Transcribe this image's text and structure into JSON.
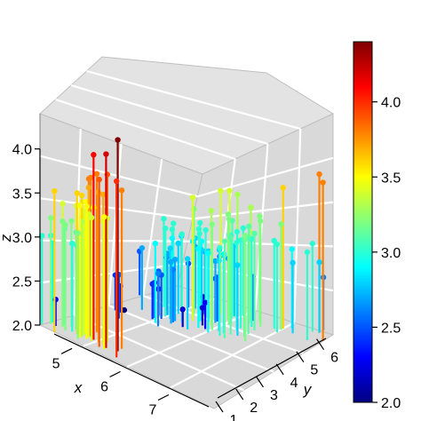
{
  "chart_data": {
    "type": "scatter3d",
    "subtype": "lollipop",
    "x_axis": {
      "label": "x",
      "ticks": [
        "5",
        "6",
        "7"
      ],
      "range": [
        4.3,
        7.9
      ]
    },
    "y_axis": {
      "label": "y",
      "ticks": [
        "1",
        "2",
        "3",
        "4",
        "5",
        "6"
      ],
      "range": [
        1.0,
        6.9
      ]
    },
    "z_axis": {
      "label": "z",
      "ticks": [
        "2.0",
        "2.5",
        "3.0",
        "3.5",
        "4.0"
      ],
      "range": [
        2.0,
        4.4
      ]
    },
    "colorbar": {
      "ticks": [
        "2.0",
        "2.5",
        "3.0",
        "3.5",
        "4.0"
      ],
      "range": [
        2.0,
        4.4
      ],
      "colors": [
        "#00007F",
        "#0000FF",
        "#007FFF",
        "#00FFFF",
        "#7FFF7F",
        "#FFFF00",
        "#FF7F00",
        "#FF0000",
        "#7F0000"
      ]
    },
    "panel_color": "#d9d9d9",
    "grid": true,
    "points": [
      {
        "x": 5.1,
        "y": 1.4,
        "z": 3.5
      },
      {
        "x": 4.9,
        "y": 1.4,
        "z": 3.0
      },
      {
        "x": 4.7,
        "y": 1.3,
        "z": 3.2
      },
      {
        "x": 4.6,
        "y": 1.5,
        "z": 3.1
      },
      {
        "x": 5.0,
        "y": 1.4,
        "z": 3.6
      },
      {
        "x": 5.4,
        "y": 1.7,
        "z": 3.9
      },
      {
        "x": 4.6,
        "y": 1.4,
        "z": 3.4
      },
      {
        "x": 5.0,
        "y": 1.5,
        "z": 3.4
      },
      {
        "x": 4.4,
        "y": 1.4,
        "z": 2.9
      },
      {
        "x": 4.9,
        "y": 1.5,
        "z": 3.1
      },
      {
        "x": 5.4,
        "y": 1.5,
        "z": 3.7
      },
      {
        "x": 4.8,
        "y": 1.6,
        "z": 3.4
      },
      {
        "x": 4.8,
        "y": 1.4,
        "z": 3.0
      },
      {
        "x": 4.3,
        "y": 1.1,
        "z": 3.0
      },
      {
        "x": 5.8,
        "y": 1.2,
        "z": 4.0
      },
      {
        "x": 5.7,
        "y": 1.5,
        "z": 4.4
      },
      {
        "x": 5.4,
        "y": 1.3,
        "z": 3.9
      },
      {
        "x": 5.1,
        "y": 1.4,
        "z": 3.5
      },
      {
        "x": 5.7,
        "y": 1.7,
        "z": 3.8
      },
      {
        "x": 5.1,
        "y": 1.5,
        "z": 3.8
      },
      {
        "x": 5.4,
        "y": 1.7,
        "z": 3.4
      },
      {
        "x": 5.1,
        "y": 1.5,
        "z": 3.7
      },
      {
        "x": 4.6,
        "y": 1.0,
        "z": 3.6
      },
      {
        "x": 5.1,
        "y": 1.7,
        "z": 3.3
      },
      {
        "x": 4.8,
        "y": 1.9,
        "z": 3.4
      },
      {
        "x": 5.0,
        "y": 1.6,
        "z": 3.0
      },
      {
        "x": 5.0,
        "y": 1.6,
        "z": 3.4
      },
      {
        "x": 5.2,
        "y": 1.5,
        "z": 3.5
      },
      {
        "x": 5.2,
        "y": 1.4,
        "z": 3.4
      },
      {
        "x": 4.7,
        "y": 1.6,
        "z": 3.2
      },
      {
        "x": 4.8,
        "y": 1.6,
        "z": 3.1
      },
      {
        "x": 5.4,
        "y": 1.5,
        "z": 3.4
      },
      {
        "x": 5.2,
        "y": 1.5,
        "z": 4.1
      },
      {
        "x": 5.5,
        "y": 1.4,
        "z": 4.2
      },
      {
        "x": 4.9,
        "y": 1.5,
        "z": 3.1
      },
      {
        "x": 5.0,
        "y": 1.2,
        "z": 3.2
      },
      {
        "x": 5.5,
        "y": 1.3,
        "z": 3.5
      },
      {
        "x": 4.9,
        "y": 1.4,
        "z": 3.6
      },
      {
        "x": 4.4,
        "y": 1.3,
        "z": 3.0
      },
      {
        "x": 5.1,
        "y": 1.5,
        "z": 3.4
      },
      {
        "x": 5.0,
        "y": 1.3,
        "z": 3.5
      },
      {
        "x": 4.5,
        "y": 1.3,
        "z": 2.3
      },
      {
        "x": 4.4,
        "y": 1.3,
        "z": 3.2
      },
      {
        "x": 5.0,
        "y": 1.6,
        "z": 3.5
      },
      {
        "x": 5.1,
        "y": 1.9,
        "z": 3.8
      },
      {
        "x": 4.8,
        "y": 1.4,
        "z": 3.0
      },
      {
        "x": 5.1,
        "y": 1.6,
        "z": 3.8
      },
      {
        "x": 4.6,
        "y": 1.4,
        "z": 3.2
      },
      {
        "x": 5.3,
        "y": 1.5,
        "z": 3.7
      },
      {
        "x": 5.0,
        "y": 1.4,
        "z": 3.3
      },
      {
        "x": 7.0,
        "y": 4.7,
        "z": 3.2
      },
      {
        "x": 6.4,
        "y": 4.5,
        "z": 3.2
      },
      {
        "x": 6.9,
        "y": 4.9,
        "z": 3.1
      },
      {
        "x": 5.5,
        "y": 4.0,
        "z": 2.3
      },
      {
        "x": 6.5,
        "y": 4.6,
        "z": 2.8
      },
      {
        "x": 5.7,
        "y": 4.5,
        "z": 2.8
      },
      {
        "x": 6.3,
        "y": 4.7,
        "z": 3.3
      },
      {
        "x": 4.9,
        "y": 3.3,
        "z": 2.4
      },
      {
        "x": 6.6,
        "y": 4.6,
        "z": 2.9
      },
      {
        "x": 5.2,
        "y": 3.9,
        "z": 2.7
      },
      {
        "x": 5.0,
        "y": 3.5,
        "z": 2.0
      },
      {
        "x": 5.9,
        "y": 4.2,
        "z": 3.0
      },
      {
        "x": 6.0,
        "y": 4.0,
        "z": 2.2
      },
      {
        "x": 6.1,
        "y": 4.7,
        "z": 2.9
      },
      {
        "x": 5.6,
        "y": 3.6,
        "z": 2.9
      },
      {
        "x": 6.7,
        "y": 4.4,
        "z": 3.1
      },
      {
        "x": 5.6,
        "y": 4.5,
        "z": 3.0
      },
      {
        "x": 5.8,
        "y": 4.1,
        "z": 2.7
      },
      {
        "x": 6.2,
        "y": 4.5,
        "z": 2.2
      },
      {
        "x": 5.6,
        "y": 3.9,
        "z": 2.5
      },
      {
        "x": 5.9,
        "y": 4.8,
        "z": 3.2
      },
      {
        "x": 6.1,
        "y": 4.0,
        "z": 2.8
      },
      {
        "x": 6.3,
        "y": 4.9,
        "z": 2.5
      },
      {
        "x": 6.1,
        "y": 4.7,
        "z": 2.8
      },
      {
        "x": 6.4,
        "y": 4.3,
        "z": 2.9
      },
      {
        "x": 6.6,
        "y": 4.4,
        "z": 3.0
      },
      {
        "x": 6.8,
        "y": 4.8,
        "z": 2.8
      },
      {
        "x": 6.7,
        "y": 5.0,
        "z": 3.0
      },
      {
        "x": 6.0,
        "y": 4.5,
        "z": 2.9
      },
      {
        "x": 5.7,
        "y": 3.5,
        "z": 2.6
      },
      {
        "x": 5.5,
        "y": 3.8,
        "z": 2.4
      },
      {
        "x": 5.5,
        "y": 3.7,
        "z": 2.4
      },
      {
        "x": 5.8,
        "y": 3.9,
        "z": 2.7
      },
      {
        "x": 6.0,
        "y": 5.1,
        "z": 2.7
      },
      {
        "x": 5.4,
        "y": 4.5,
        "z": 3.0
      },
      {
        "x": 6.0,
        "y": 4.5,
        "z": 3.4
      },
      {
        "x": 6.7,
        "y": 4.7,
        "z": 3.1
      },
      {
        "x": 6.3,
        "y": 4.4,
        "z": 2.3
      },
      {
        "x": 5.6,
        "y": 4.1,
        "z": 3.0
      },
      {
        "x": 5.5,
        "y": 4.0,
        "z": 2.5
      },
      {
        "x": 5.5,
        "y": 4.4,
        "z": 2.6
      },
      {
        "x": 6.1,
        "y": 4.6,
        "z": 3.0
      },
      {
        "x": 5.8,
        "y": 4.0,
        "z": 2.6
      },
      {
        "x": 5.0,
        "y": 3.3,
        "z": 2.3
      },
      {
        "x": 5.6,
        "y": 4.2,
        "z": 2.7
      },
      {
        "x": 5.7,
        "y": 4.2,
        "z": 3.0
      },
      {
        "x": 5.7,
        "y": 4.2,
        "z": 2.9
      },
      {
        "x": 6.2,
        "y": 4.3,
        "z": 2.9
      },
      {
        "x": 5.1,
        "y": 3.0,
        "z": 2.5
      },
      {
        "x": 5.7,
        "y": 4.1,
        "z": 2.8
      },
      {
        "x": 6.3,
        "y": 6.0,
        "z": 3.3
      },
      {
        "x": 5.8,
        "y": 5.1,
        "z": 2.7
      },
      {
        "x": 7.1,
        "y": 5.9,
        "z": 3.0
      },
      {
        "x": 6.3,
        "y": 5.6,
        "z": 2.9
      },
      {
        "x": 6.5,
        "y": 5.8,
        "z": 3.0
      },
      {
        "x": 7.6,
        "y": 6.6,
        "z": 3.0
      },
      {
        "x": 4.9,
        "y": 4.5,
        "z": 2.5
      },
      {
        "x": 7.3,
        "y": 6.3,
        "z": 2.9
      },
      {
        "x": 6.7,
        "y": 5.8,
        "z": 2.5
      },
      {
        "x": 7.2,
        "y": 6.1,
        "z": 3.6
      },
      {
        "x": 6.5,
        "y": 5.1,
        "z": 3.2
      },
      {
        "x": 6.4,
        "y": 5.3,
        "z": 2.7
      },
      {
        "x": 6.8,
        "y": 5.5,
        "z": 3.0
      },
      {
        "x": 5.7,
        "y": 5.0,
        "z": 2.5
      },
      {
        "x": 5.8,
        "y": 5.1,
        "z": 2.8
      },
      {
        "x": 6.4,
        "y": 5.3,
        "z": 3.2
      },
      {
        "x": 6.5,
        "y": 5.5,
        "z": 3.0
      },
      {
        "x": 7.7,
        "y": 6.7,
        "z": 3.8
      },
      {
        "x": 7.7,
        "y": 6.9,
        "z": 2.6
      },
      {
        "x": 6.0,
        "y": 5.0,
        "z": 2.2
      },
      {
        "x": 6.9,
        "y": 5.7,
        "z": 3.2
      },
      {
        "x": 5.6,
        "y": 4.9,
        "z": 2.8
      },
      {
        "x": 7.7,
        "y": 6.7,
        "z": 2.8
      },
      {
        "x": 6.3,
        "y": 4.9,
        "z": 2.7
      },
      {
        "x": 6.7,
        "y": 5.7,
        "z": 3.3
      },
      {
        "x": 7.2,
        "y": 6.0,
        "z": 3.2
      },
      {
        "x": 6.2,
        "y": 4.8,
        "z": 2.8
      },
      {
        "x": 6.1,
        "y": 4.9,
        "z": 3.0
      },
      {
        "x": 6.4,
        "y": 5.6,
        "z": 2.8
      },
      {
        "x": 7.2,
        "y": 5.8,
        "z": 3.0
      },
      {
        "x": 7.4,
        "y": 6.1,
        "z": 2.8
      },
      {
        "x": 7.9,
        "y": 6.4,
        "z": 3.8
      },
      {
        "x": 6.4,
        "y": 5.6,
        "z": 2.8
      },
      {
        "x": 6.3,
        "y": 5.1,
        "z": 2.8
      },
      {
        "x": 6.1,
        "y": 5.6,
        "z": 2.6
      },
      {
        "x": 7.7,
        "y": 6.1,
        "z": 3.0
      },
      {
        "x": 6.3,
        "y": 5.6,
        "z": 3.4
      },
      {
        "x": 6.4,
        "y": 5.5,
        "z": 3.1
      },
      {
        "x": 6.0,
        "y": 4.8,
        "z": 3.0
      },
      {
        "x": 6.9,
        "y": 5.4,
        "z": 3.1
      },
      {
        "x": 6.7,
        "y": 5.6,
        "z": 3.1
      },
      {
        "x": 6.9,
        "y": 5.1,
        "z": 3.1
      },
      {
        "x": 5.8,
        "y": 5.1,
        "z": 2.7
      },
      {
        "x": 6.8,
        "y": 5.9,
        "z": 3.2
      },
      {
        "x": 6.7,
        "y": 5.7,
        "z": 3.3
      },
      {
        "x": 6.7,
        "y": 5.2,
        "z": 3.0
      },
      {
        "x": 6.3,
        "y": 5.0,
        "z": 2.5
      },
      {
        "x": 6.5,
        "y": 5.2,
        "z": 3.0
      },
      {
        "x": 6.2,
        "y": 5.4,
        "z": 3.4
      },
      {
        "x": 5.9,
        "y": 5.1,
        "z": 3.0
      }
    ]
  }
}
